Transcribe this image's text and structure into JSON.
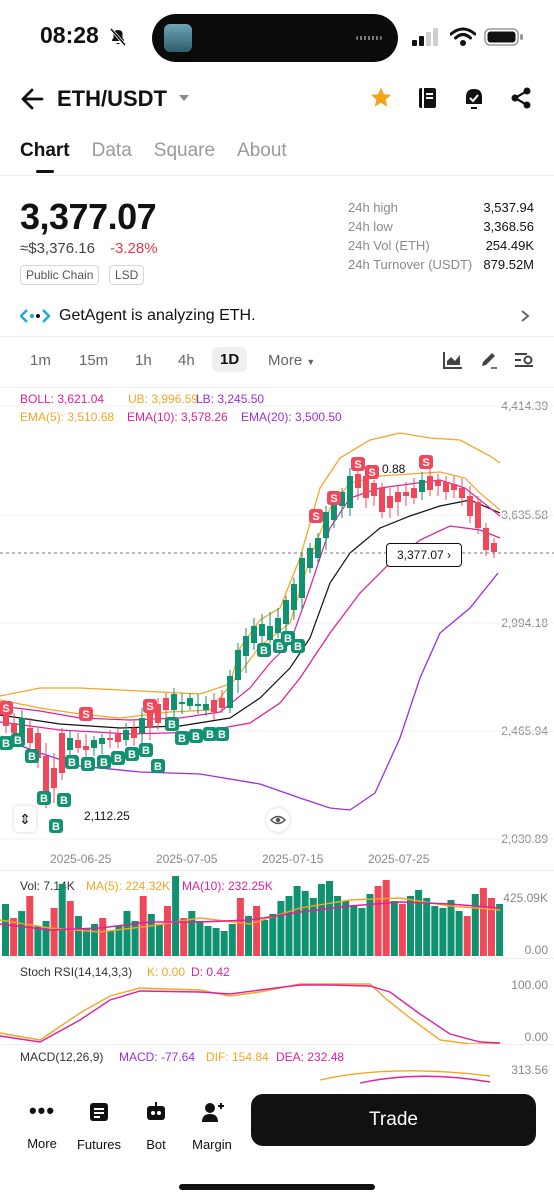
{
  "status_bar": {
    "time": "08:28"
  },
  "header": {
    "pair": "ETH/USDT"
  },
  "tabs": [
    {
      "label": "Chart",
      "active": true
    },
    {
      "label": "Data",
      "active": false
    },
    {
      "label": "Square",
      "active": false
    },
    {
      "label": "About",
      "active": false
    }
  ],
  "ticker": {
    "price": "3,377.07",
    "usd_equiv": "≈$3,376.16",
    "change": "-3.28%",
    "tags": [
      "Public Chain",
      "LSD"
    ],
    "stats": [
      {
        "label": "24h high",
        "value": "3,537.94"
      },
      {
        "label": "24h low",
        "value": "3,368.56"
      },
      {
        "label": "24h Vol (ETH)",
        "value": "254.49K"
      },
      {
        "label": "24h Turnover (USDT)",
        "value": "879.52M"
      }
    ]
  },
  "agent_banner": {
    "text": "GetAgent is analyzing ETH."
  },
  "timeframes": {
    "items": [
      "1m",
      "15m",
      "1h",
      "4h",
      "1D"
    ],
    "active": "1D",
    "more_label": "More"
  },
  "indicators": {
    "boll": "BOLL: 3,621.04",
    "ub": "UB: 3,996.59",
    "lb": "LB: 3,245.50",
    "ema5": "EMA(5): 3,510.68",
    "ema10": "EMA(10): 3,578.26",
    "ema20": "EMA(20): 3,500.50"
  },
  "price_axis": [
    "4,414.39",
    "3,635.58",
    "2,994.18",
    "2,465.94",
    "2,030.89"
  ],
  "chart_labels": {
    "current_price": "3,377.07",
    "high_marker": "0.88",
    "low_marker": "2,112.25"
  },
  "dates": [
    "2025-06-25",
    "2025-07-05",
    "2025-07-15",
    "2025-07-25"
  ],
  "volume": {
    "label": "Vol: 7.14K",
    "ma5": "MA(5): 224.32K",
    "ma10": "MA(10): 232.25K",
    "axis_top": "425.09K",
    "axis_bottom": "0.00"
  },
  "stoch_rsi": {
    "label": "Stoch RSI(14,14,3,3)",
    "k": "K: 0.00",
    "d": "D: 0.42",
    "axis_top": "100.00",
    "axis_bottom": "0.00"
  },
  "macd": {
    "label": "MACD(12,26,9)",
    "macd": "MACD: -77.64",
    "dif": "DIF: 154.84",
    "dea": "DEA: 232.48",
    "axis_top": "313.56"
  },
  "bottom_nav": [
    {
      "label": "More",
      "icon": "dots-icon"
    },
    {
      "label": "Futures",
      "icon": "futures-icon"
    },
    {
      "label": "Bot",
      "icon": "bot-icon"
    },
    {
      "label": "Margin",
      "icon": "margin-icon"
    }
  ],
  "trade_button": "Trade",
  "colors": {
    "up": "#10916f",
    "down": "#f0485a",
    "ub": "#f5a524",
    "ema10": "#e0209b",
    "lb": "#9b2ee0"
  }
}
